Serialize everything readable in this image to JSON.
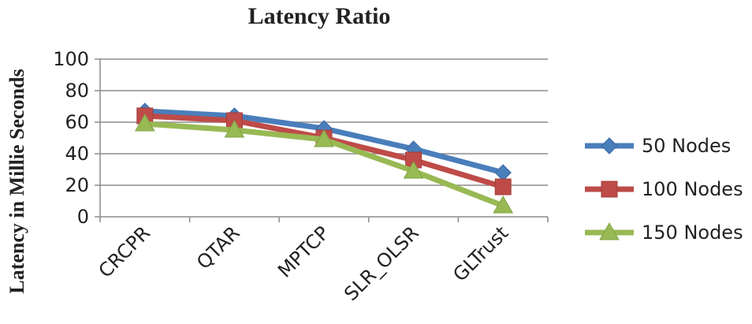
{
  "chart_data": {
    "type": "line",
    "title": "Latency Ratio",
    "xlabel": "",
    "ylabel": "Latency in Millie Seconds",
    "categories": [
      "CRCPR",
      "QTAR",
      "MPTCP",
      "SLR_OLSR",
      "GLTrust"
    ],
    "yticks": [
      "0",
      "20",
      "40",
      "60",
      "80",
      "100"
    ],
    "ylim": [
      0,
      100
    ],
    "grid": true,
    "legend": "right",
    "series": [
      {
        "name": "50 Nodes",
        "values": [
          67,
          64,
          56,
          43,
          28
        ],
        "color": "#4a7ebb",
        "marker": "diamond"
      },
      {
        "name": "100 Nodes",
        "values": [
          64,
          61,
          50,
          36,
          19
        ],
        "color": "#be4b48",
        "marker": "square"
      },
      {
        "name": "150 Nodes",
        "values": [
          59,
          55,
          49,
          29,
          7
        ],
        "color": "#98b954",
        "marker": "triangle"
      }
    ]
  }
}
